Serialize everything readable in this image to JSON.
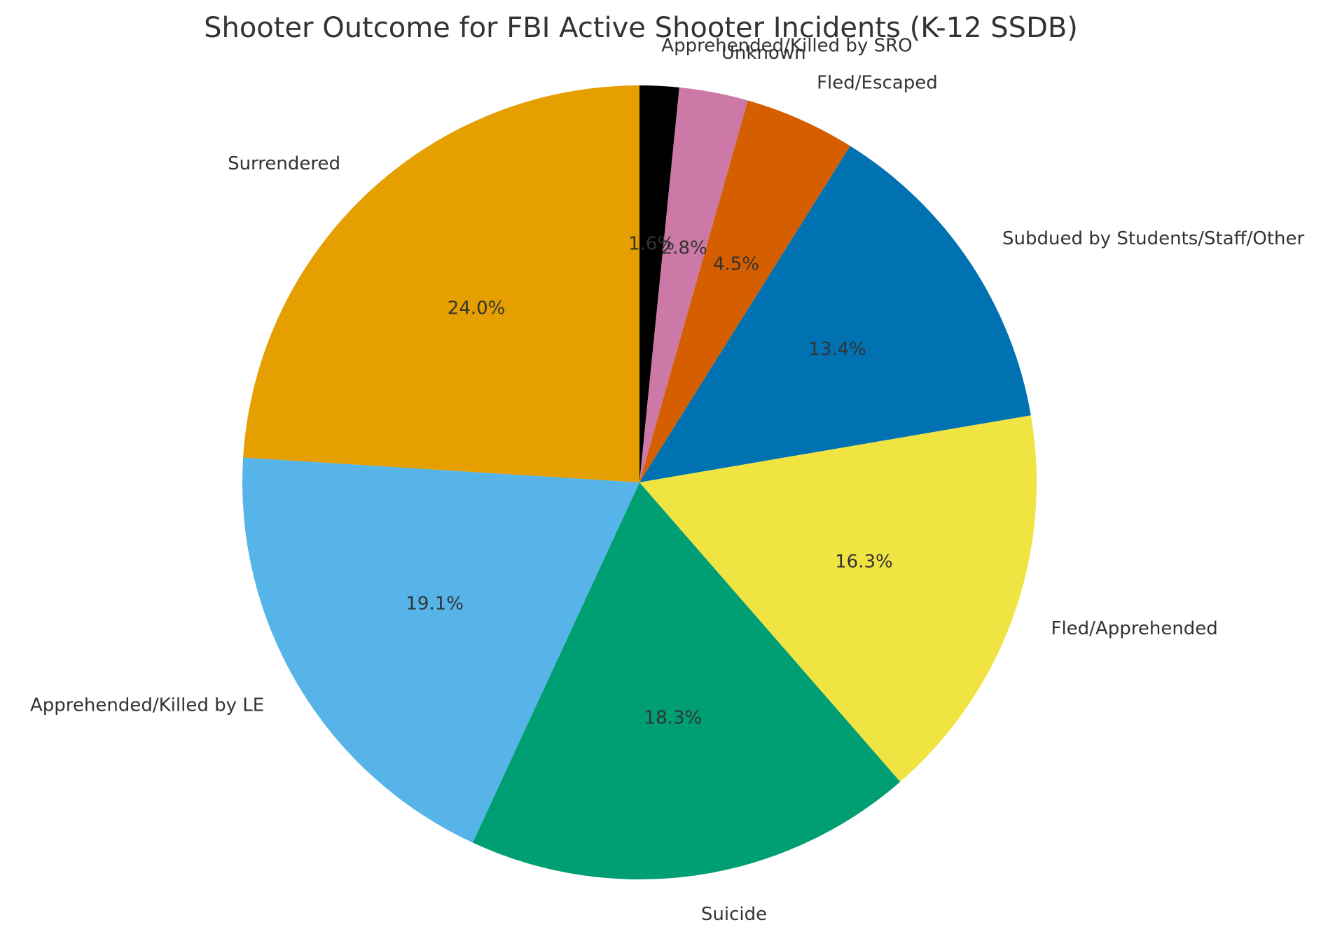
{
  "chart_data": {
    "type": "pie",
    "title": "Shooter Outcome for FBI Active Shooter Incidents (K-12 SSDB)",
    "slices": [
      {
        "label": "Apprehended/Killed by SRO",
        "value": 1.6,
        "pct_label": "1.6%",
        "color": "#000000"
      },
      {
        "label": "Unknown",
        "value": 2.8,
        "pct_label": "2.8%",
        "color": "#CC79A7"
      },
      {
        "label": "Fled/Escaped",
        "value": 4.5,
        "pct_label": "4.5%",
        "color": "#D55E00"
      },
      {
        "label": "Subdued by Students/Staff/Other",
        "value": 13.4,
        "pct_label": "13.4%",
        "color": "#0072B2"
      },
      {
        "label": "Fled/Apprehended",
        "value": 16.3,
        "pct_label": "16.3%",
        "color": "#F0E442"
      },
      {
        "label": "Suicide",
        "value": 18.3,
        "pct_label": "18.3%",
        "color": "#009E73"
      },
      {
        "label": "Apprehended/Killed by LE",
        "value": 19.1,
        "pct_label": "19.1%",
        "color": "#56B4E9"
      },
      {
        "label": "Surrendered",
        "value": 24.0,
        "pct_label": "24.0%",
        "color": "#E69F00"
      }
    ],
    "start": "top",
    "direction": "clockwise",
    "legend": "none"
  }
}
